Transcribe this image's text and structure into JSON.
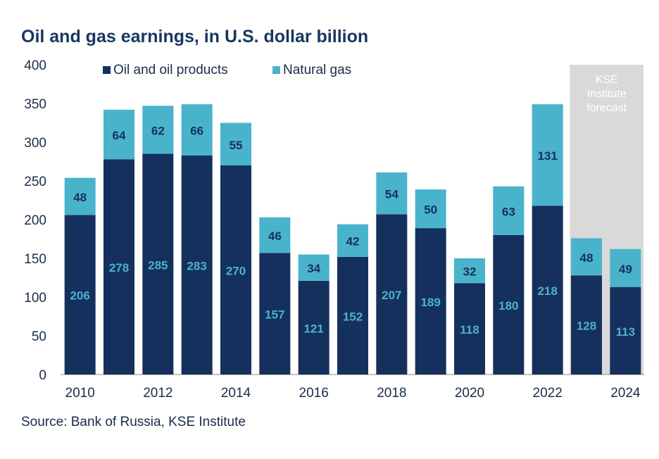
{
  "title": "Oil and gas earnings, in U.S. dollar billion",
  "source": "Source: Bank of Russia, KSE Institute",
  "colors": {
    "oil": "#15305c",
    "gas": "#4ab3cc",
    "oil_label": "#4ab3cc",
    "gas_label": "#15305c",
    "forecast_band": "#d9d9d9",
    "forecast_text": "#ffffff",
    "axis_text": "#1a2d4a"
  },
  "chart_data": {
    "type": "bar",
    "stacked": true,
    "title": "Oil and gas earnings, in U.S. dollar billion",
    "xlabel": "",
    "ylabel": "",
    "ylim": [
      0,
      400
    ],
    "yticks": [
      0,
      50,
      100,
      150,
      200,
      250,
      300,
      350,
      400
    ],
    "categories": [
      "2010",
      "2011",
      "2012",
      "2013",
      "2014",
      "2015",
      "2016",
      "2017",
      "2018",
      "2019",
      "2020",
      "2021",
      "2022",
      "2023",
      "2024"
    ],
    "x_tick_labels": [
      "2010",
      "",
      "2012",
      "",
      "2014",
      "",
      "2016",
      "",
      "2018",
      "",
      "2020",
      "",
      "2022",
      "",
      "2024"
    ],
    "series": [
      {
        "name": "Oil and oil products",
        "values": [
          206,
          278,
          285,
          283,
          270,
          157,
          121,
          152,
          207,
          189,
          118,
          180,
          218,
          128,
          113
        ]
      },
      {
        "name": "Natural gas",
        "values": [
          48,
          64,
          62,
          66,
          55,
          46,
          34,
          42,
          54,
          50,
          32,
          63,
          131,
          48,
          49
        ]
      }
    ],
    "legend_position": "top",
    "forecast": {
      "label": [
        "KSE",
        "Institute",
        "forecast"
      ],
      "categories": [
        "2023",
        "2024"
      ]
    }
  }
}
